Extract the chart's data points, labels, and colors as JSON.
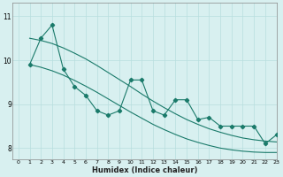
{
  "xlabel": "Humidex (Indice chaleur)",
  "background_color": "#d8f0f0",
  "line_color": "#1a7a6a",
  "grid_color": "#b8dede",
  "zigzag": [
    9.9,
    10.5,
    10.8,
    9.8,
    9.4,
    9.2,
    8.85,
    8.75,
    8.85,
    9.55,
    9.55,
    8.85,
    8.75,
    9.1,
    9.1,
    8.65,
    8.7,
    8.5,
    8.5,
    8.5,
    8.5,
    8.1,
    8.3
  ],
  "smooth_top": [
    10.5,
    10.45,
    10.38,
    10.28,
    10.16,
    10.03,
    9.88,
    9.72,
    9.56,
    9.4,
    9.23,
    9.07,
    8.92,
    8.78,
    8.65,
    8.54,
    8.44,
    8.36,
    8.29,
    8.23,
    8.19,
    8.16,
    8.14
  ],
  "smooth_bot": [
    9.9,
    9.84,
    9.76,
    9.66,
    9.54,
    9.41,
    9.27,
    9.12,
    8.97,
    8.82,
    8.68,
    8.54,
    8.42,
    8.31,
    8.21,
    8.13,
    8.06,
    8.0,
    7.96,
    7.93,
    7.91,
    7.9,
    7.9
  ],
  "xlim": [
    -0.5,
    23
  ],
  "ylim": [
    7.75,
    11.3
  ],
  "yticks": [
    8,
    9,
    10,
    11
  ],
  "xticks": [
    0,
    1,
    2,
    3,
    4,
    5,
    6,
    7,
    8,
    9,
    10,
    11,
    12,
    13,
    14,
    15,
    16,
    17,
    18,
    19,
    20,
    21,
    22,
    23
  ]
}
